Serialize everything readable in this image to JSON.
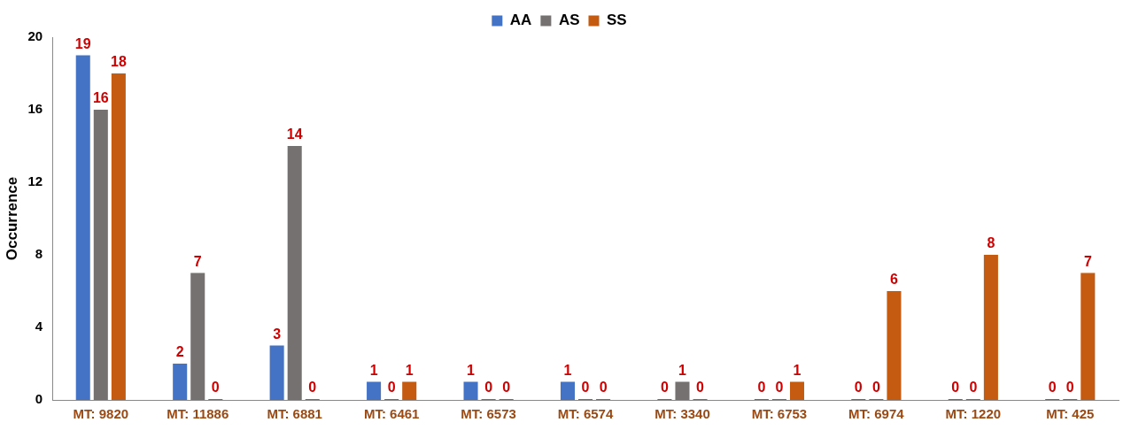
{
  "chart_data": {
    "type": "bar",
    "ylabel": "Occurrence",
    "categories": [
      "MT: 9820",
      "MT: 11886",
      "MT: 6881",
      "MT: 6461",
      "MT: 6573",
      "MT: 6574",
      "MT: 3340",
      "MT: 6753",
      "MT: 6974",
      "MT: 1220",
      "MT: 425"
    ],
    "series": [
      {
        "name": "AA",
        "color": "#4472c4",
        "values": [
          19,
          2,
          3,
          1,
          1,
          1,
          0,
          0,
          0,
          0,
          0
        ]
      },
      {
        "name": "AS",
        "color": "#767171",
        "values": [
          16,
          7,
          14,
          0,
          0,
          0,
          1,
          0,
          0,
          0,
          0
        ]
      },
      {
        "name": "SS",
        "color": "#c55a11",
        "values": [
          18,
          0,
          0,
          1,
          0,
          0,
          0,
          1,
          6,
          8,
          7
        ]
      }
    ],
    "ylim": [
      0,
      20
    ],
    "yticks": [
      0,
      4,
      8,
      12,
      16,
      20
    ],
    "grid": false,
    "legend": "top",
    "data_labels": true
  }
}
